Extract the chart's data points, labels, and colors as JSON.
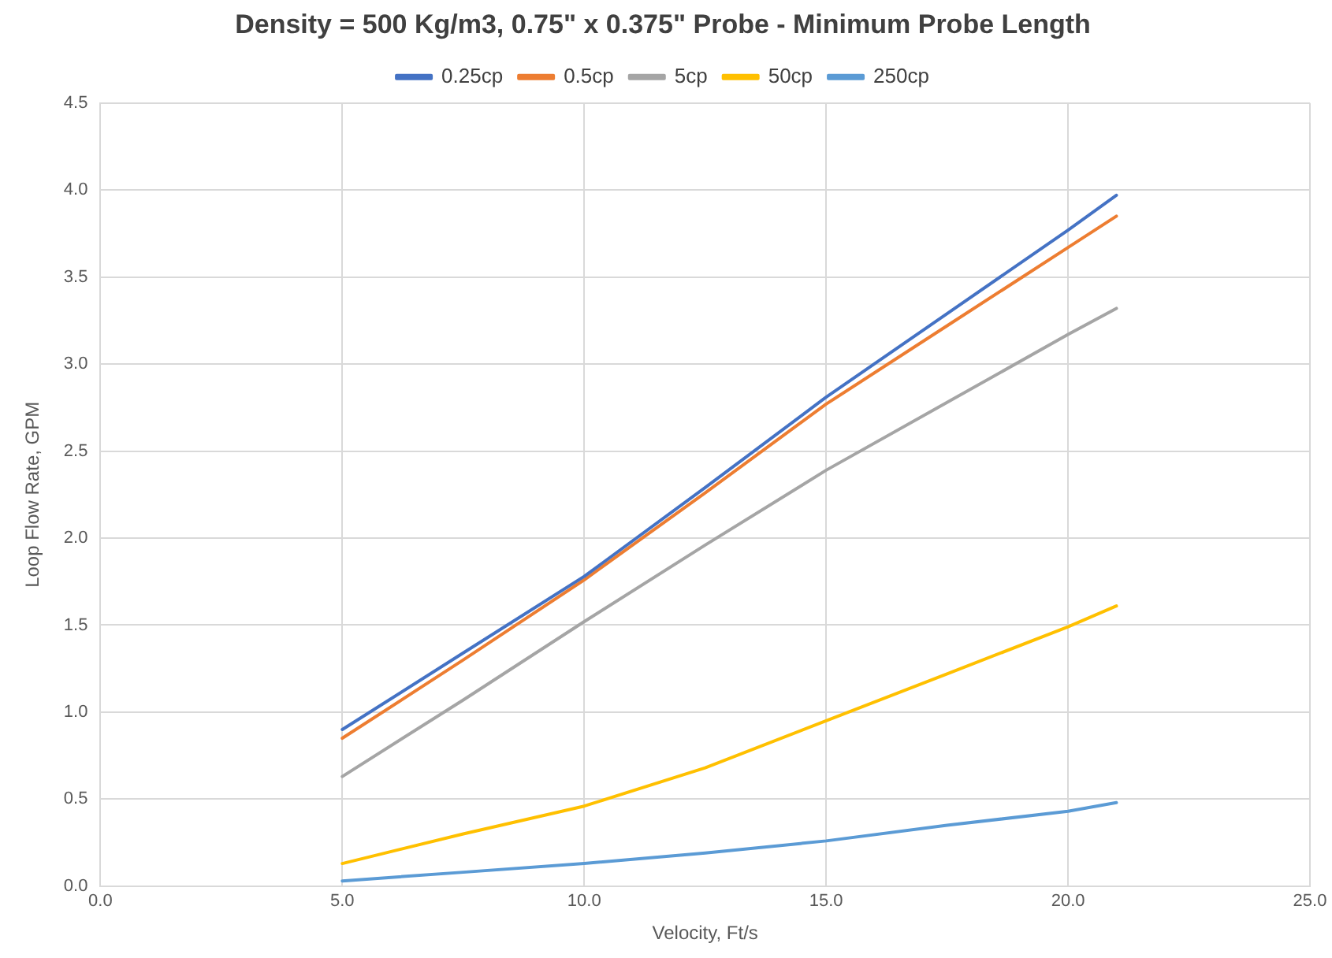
{
  "chart_data": {
    "type": "line",
    "title": "Density = 500 Kg/m3, 0.75\" x 0.375\" Probe - Minimum Probe Length",
    "xlabel": "Velocity, Ft/s",
    "ylabel": "Loop Flow Rate, GPM",
    "x": [
      5,
      7.5,
      10,
      12.5,
      15,
      17.5,
      20,
      21
    ],
    "series": [
      {
        "name": "0.25cp",
        "color": "#4472c4",
        "values": [
          0.9,
          1.34,
          1.78,
          2.29,
          2.81,
          3.29,
          3.77,
          3.97
        ]
      },
      {
        "name": "0.5cp",
        "color": "#ed7d31",
        "values": [
          0.85,
          1.3,
          1.76,
          2.26,
          2.77,
          3.22,
          3.67,
          3.85
        ]
      },
      {
        "name": "5cp",
        "color": "#a5a5a5",
        "values": [
          0.63,
          1.07,
          1.52,
          1.96,
          2.39,
          2.78,
          3.17,
          3.32
        ]
      },
      {
        "name": "50cp",
        "color": "#ffc000",
        "values": [
          0.13,
          0.3,
          0.46,
          0.68,
          0.95,
          1.22,
          1.49,
          1.61
        ]
      },
      {
        "name": "250cp",
        "color": "#5b9bd5",
        "values": [
          0.03,
          0.08,
          0.13,
          0.19,
          0.26,
          0.35,
          0.43,
          0.48
        ]
      }
    ],
    "xlim": [
      0,
      25
    ],
    "xticks": [
      {
        "value": 0,
        "label": "0.0"
      },
      {
        "value": 5,
        "label": "5.0"
      },
      {
        "value": 10,
        "label": "10.0"
      },
      {
        "value": 15,
        "label": "15.0"
      },
      {
        "value": 20,
        "label": "20.0"
      },
      {
        "value": 25,
        "label": "25.0"
      }
    ],
    "ylim": [
      0,
      4.5
    ],
    "yticks": [
      {
        "value": 0,
        "label": "0.0"
      },
      {
        "value": 0.5,
        "label": "0.5"
      },
      {
        "value": 1,
        "label": "1.0"
      },
      {
        "value": 1.5,
        "label": "1.5"
      },
      {
        "value": 2,
        "label": "2.0"
      },
      {
        "value": 2.5,
        "label": "2.5"
      },
      {
        "value": 3,
        "label": "3.0"
      },
      {
        "value": 3.5,
        "label": "3.5"
      },
      {
        "value": 4,
        "label": "4.0"
      },
      {
        "value": 4.5,
        "label": "4.5"
      }
    ],
    "grid": true,
    "legend": "top",
    "marker": "none",
    "line_style": "solid"
  }
}
